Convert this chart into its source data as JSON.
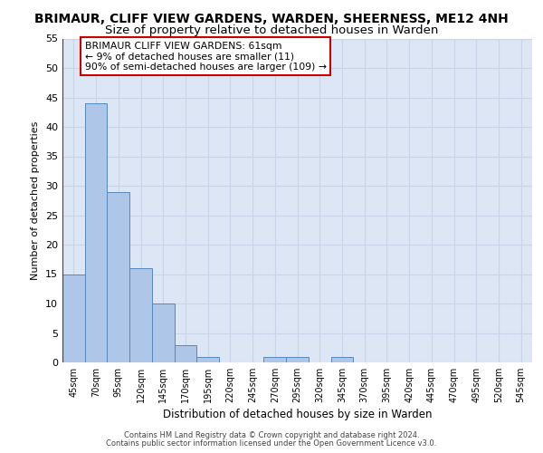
{
  "title1": "BRIMAUR, CLIFF VIEW GARDENS, WARDEN, SHEERNESS, ME12 4NH",
  "title2": "Size of property relative to detached houses in Warden",
  "xlabel": "Distribution of detached houses by size in Warden",
  "ylabel": "Number of detached properties",
  "bar_labels": [
    "45sqm",
    "70sqm",
    "95sqm",
    "120sqm",
    "145sqm",
    "170sqm",
    "195sqm",
    "220sqm",
    "245sqm",
    "270sqm",
    "295sqm",
    "320sqm",
    "345sqm",
    "370sqm",
    "395sqm",
    "420sqm",
    "445sqm",
    "470sqm",
    "495sqm",
    "520sqm",
    "545sqm"
  ],
  "bar_values": [
    15,
    44,
    29,
    16,
    10,
    3,
    1,
    0,
    0,
    1,
    1,
    0,
    1,
    0,
    0,
    0,
    0,
    0,
    0,
    0,
    0
  ],
  "bar_color": "#aec6e8",
  "bar_edge_color": "#5588bb",
  "grid_color": "#c8d4e8",
  "bg_color": "#dce6f5",
  "annotation_title": "BRIMAUR CLIFF VIEW GARDENS: 61sqm",
  "annotation_line1": "← 9% of detached houses are smaller (11)",
  "annotation_line2": "90% of semi-detached houses are larger (109) →",
  "ylim": [
    0,
    55
  ],
  "yticks": [
    0,
    5,
    10,
    15,
    20,
    25,
    30,
    35,
    40,
    45,
    50,
    55
  ],
  "footer1": "Contains HM Land Registry data © Crown copyright and database right 2024.",
  "footer2": "Contains public sector information licensed under the Open Government Licence v3.0.",
  "title1_fontsize": 10,
  "title2_fontsize": 9.5,
  "annotation_box_color": "#ffffff",
  "annotation_box_edge": "#cc0000",
  "vline_color": "#cc0000"
}
